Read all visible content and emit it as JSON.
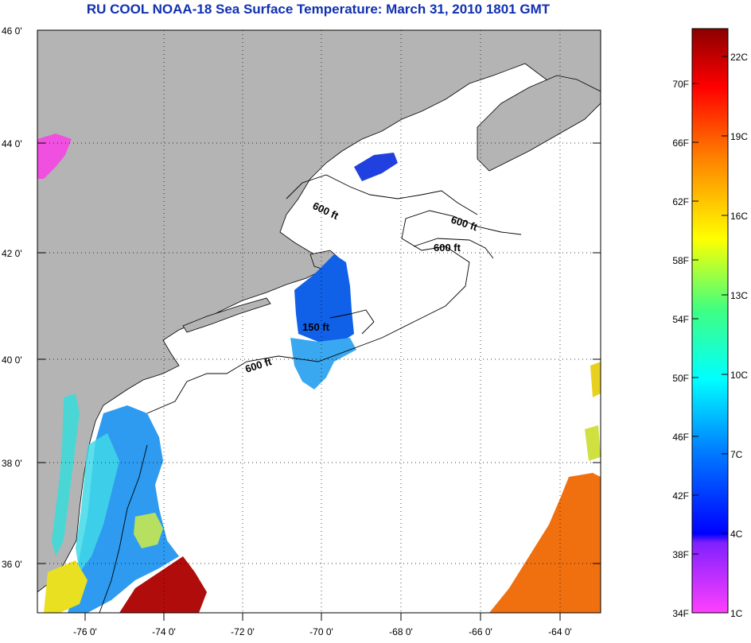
{
  "title": "RU COOL  NOAA-18  Sea Surface Temperature:  March 31, 2010 1801 GMT",
  "map": {
    "lat_labels": [
      "46 0'",
      "44 0'",
      "42 0'",
      "40 0'",
      "38 0'",
      "36 0'"
    ],
    "lon_labels": [
      "-76 0'",
      "-74 0'",
      "-72 0'",
      "-70 0'",
      "-68 0'",
      "-66 0'",
      "-64 0'"
    ],
    "contour_labels": [
      "600 ft",
      "600 ft",
      "600 ft",
      "150 ft",
      "600 ft"
    ],
    "colors": {
      "land": "#b4b4b4",
      "ocean_no_data": "#ffffff",
      "coast": "#000000"
    }
  },
  "colorbar": {
    "fahrenheit": [
      "70F",
      "66F",
      "62F",
      "58F",
      "54F",
      "50F",
      "46F",
      "42F",
      "38F",
      "34F"
    ],
    "celsius": [
      "22C",
      "19C",
      "16C",
      "13C",
      "10C",
      "7C",
      "4C",
      "1C"
    ],
    "colors": [
      "#8b0000",
      "#ff0000",
      "#ff8000",
      "#ffff00",
      "#00ff80",
      "#00ffff",
      "#0080ff",
      "#0000ff",
      "#8000ff",
      "#ff00ff"
    ]
  }
}
